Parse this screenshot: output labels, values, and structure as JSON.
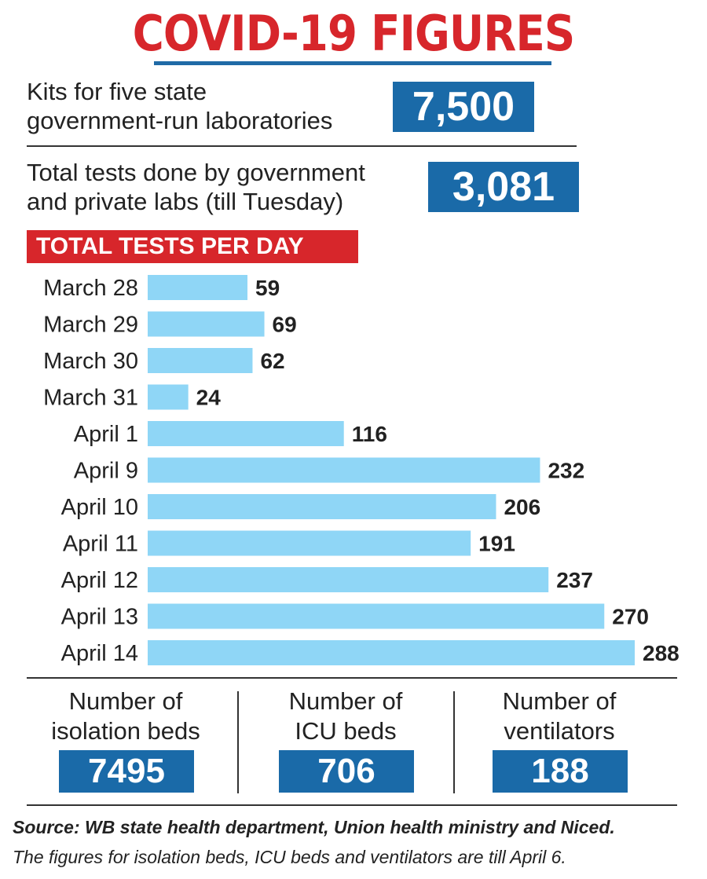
{
  "title": "COVID-19 FIGURES",
  "kits": {
    "label_line1": "Kits for five state",
    "label_line2": "government-run laboratories",
    "value": "7,500"
  },
  "total_tests": {
    "label_line1": "Total tests done by government",
    "label_line2": "and private labs (till Tuesday)",
    "value": "3,081"
  },
  "chart_data": {
    "type": "bar",
    "orientation": "horizontal",
    "title": "TOTAL TESTS PER DAY",
    "categories": [
      "March 28",
      "March 29",
      "March 30",
      "March 31",
      "April 1",
      "April 9",
      "April 10",
      "April 11",
      "April 12",
      "April 13",
      "April 14"
    ],
    "values": [
      59,
      69,
      62,
      24,
      116,
      232,
      206,
      191,
      237,
      270,
      288
    ],
    "bar_color": "#8fd6f6",
    "xlim": [
      0,
      288
    ],
    "grid": false
  },
  "beds": [
    {
      "label_line1": "Number of",
      "label_line2": "isolation beds",
      "value": "7495"
    },
    {
      "label_line1": "Number of",
      "label_line2": "ICU beds",
      "value": "706"
    },
    {
      "label_line1": "Number of",
      "label_line2": "ventilators",
      "value": "188"
    }
  ],
  "source": "Source: WB state health department, Union health ministry and Niced.",
  "note": "The figures for isolation beds, ICU beds and ventilators are till April 6.",
  "colors": {
    "title_red": "#d7262b",
    "box_blue": "#1a6aa8",
    "bar_blue": "#8fd6f6"
  }
}
